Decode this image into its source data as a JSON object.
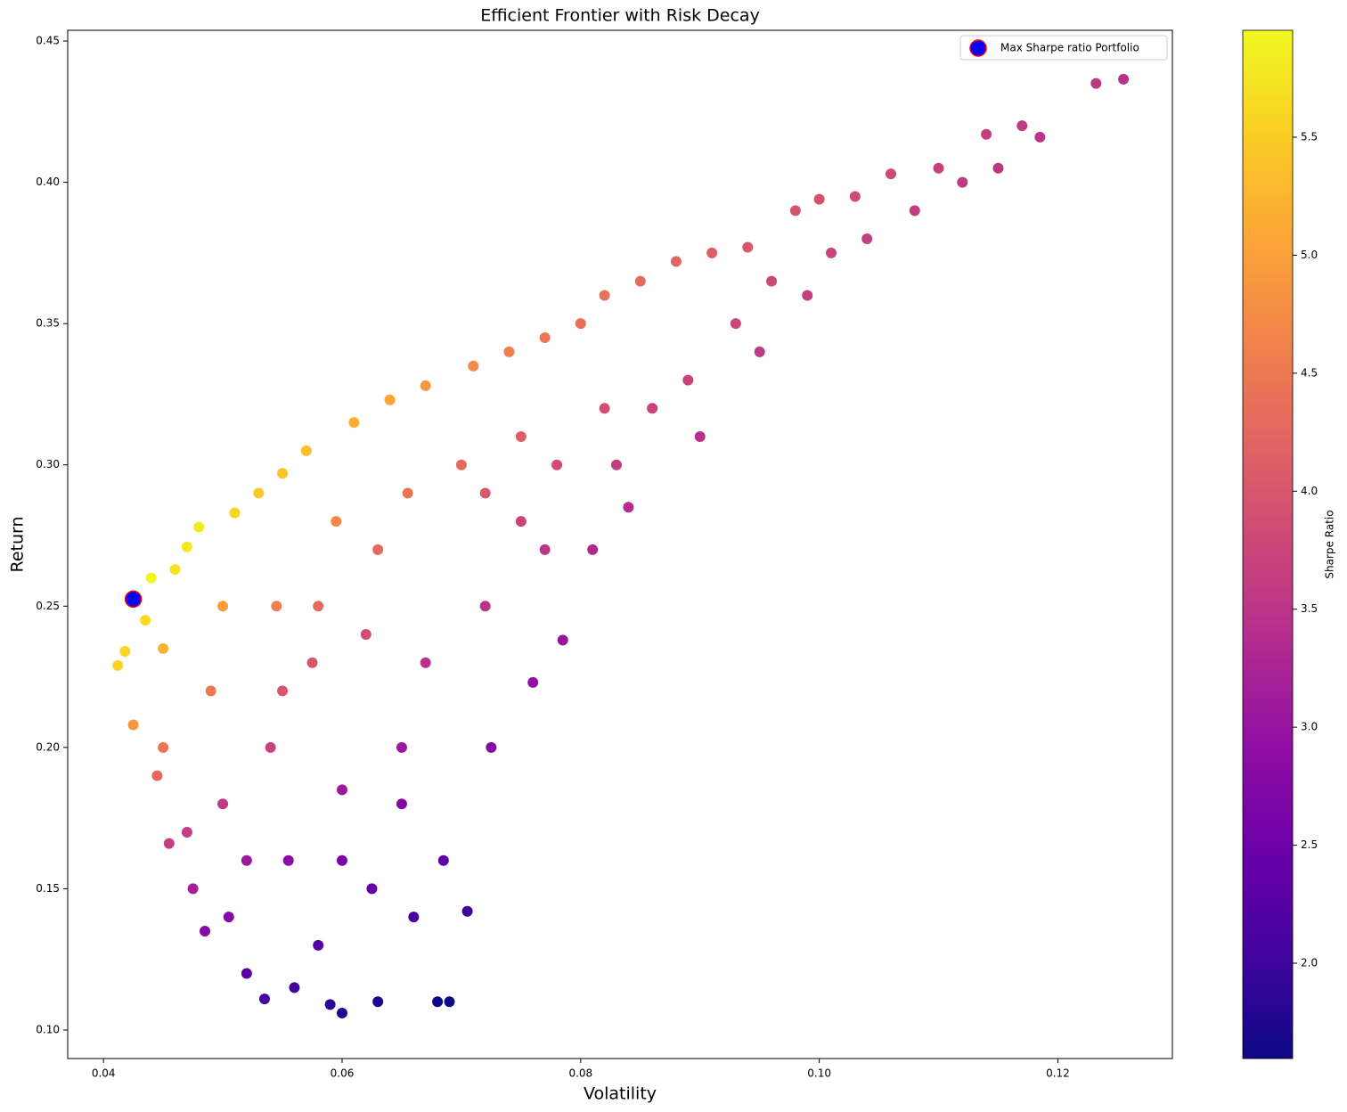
{
  "chart_data": {
    "type": "scatter",
    "title": "Efficient Frontier with Risk Decay",
    "x_label": "Volatility",
    "y_label": "Return",
    "xlim": [
      0.037,
      0.1296
    ],
    "ylim": [
      0.0899,
      0.4538
    ],
    "xticks": [
      0.04,
      0.06,
      0.08,
      {
        "value": 0.1,
        "label": "0.10"
      },
      0.12
    ],
    "yticks": [
      {
        "value": 0.1,
        "label": "0.10"
      },
      0.15,
      {
        "value": 0.2,
        "label": "0.20"
      },
      0.25,
      {
        "value": 0.3,
        "label": "0.30"
      },
      0.35,
      {
        "value": 0.4,
        "label": "0.40"
      },
      0.45
    ],
    "colorbar": {
      "label": "Sharpe Ratio",
      "colormap": "plasma",
      "clim": [
        1.596,
        5.953
      ],
      "ticks": [
        {
          "value": 2,
          "label": "2.0"
        },
        2.5,
        {
          "value": 3,
          "label": "3.0"
        },
        3.5,
        {
          "value": 4,
          "label": "4.0"
        },
        4.5,
        {
          "value": 5,
          "label": "5.0"
        },
        5.5
      ]
    },
    "legend_position": "upper right",
    "series": [
      {
        "x": [
          0.0412,
          0.0418,
          0.0425,
          0.0435,
          0.044,
          0.0445,
          0.045,
          0.0455,
          0.046,
          0.047,
          0.048,
          0.0475,
          0.0485,
          0.049,
          0.05,
          0.051,
          0.0505,
          0.052,
          0.053,
          0.0535,
          0.054,
          0.0545,
          0.055,
          0.0555,
          0.056,
          0.057,
          0.0575,
          0.058,
          0.059,
          0.06,
          0.0595,
          0.06,
          0.061,
          0.062,
          0.0625,
          0.063,
          0.064,
          0.065,
          0.0655,
          0.066,
          0.067,
          0.068,
          0.069,
          0.0685,
          0.07,
          0.0705,
          0.071,
          0.072,
          0.0725,
          0.074,
          0.075,
          0.076,
          0.077,
          0.078,
          0.0785,
          0.08,
          0.081,
          0.082,
          0.083,
          0.084,
          0.085,
          0.086,
          0.088,
          0.089,
          0.09,
          0.091,
          0.093,
          0.094,
          0.095,
          0.096,
          0.098,
          0.099,
          0.1,
          0.101,
          0.103,
          0.104,
          0.106,
          0.108,
          0.11,
          0.112,
          0.114,
          0.115,
          0.117,
          0.1185,
          0.1232,
          0.1255,
          0.05,
          0.052,
          0.055,
          0.058,
          0.063,
          0.067,
          0.072,
          0.077,
          0.082,
          0.045,
          0.047,
          0.06,
          0.065,
          0.075
        ],
        "values": [
          0.229,
          0.234,
          0.208,
          0.245,
          0.26,
          0.19,
          0.235,
          0.166,
          0.263,
          0.271,
          0.278,
          0.15,
          0.135,
          0.22,
          0.25,
          0.283,
          0.14,
          0.12,
          0.29,
          0.111,
          0.2,
          0.25,
          0.297,
          0.16,
          0.115,
          0.305,
          0.23,
          0.13,
          0.109,
          0.106,
          0.28,
          0.185,
          0.315,
          0.24,
          0.15,
          0.11,
          0.323,
          0.2,
          0.29,
          0.14,
          0.328,
          0.11,
          0.11,
          0.16,
          0.3,
          0.142,
          0.335,
          0.25,
          0.2,
          0.34,
          0.28,
          0.223,
          0.345,
          0.3,
          0.238,
          0.35,
          0.27,
          0.36,
          0.3,
          0.285,
          0.365,
          0.32,
          0.372,
          0.33,
          0.31,
          0.375,
          0.35,
          0.377,
          0.34,
          0.365,
          0.39,
          0.36,
          0.394,
          0.375,
          0.395,
          0.38,
          0.403,
          0.39,
          0.405,
          0.4,
          0.417,
          0.405,
          0.42,
          0.416,
          0.435,
          0.4365,
          0.18,
          0.16,
          0.22,
          0.25,
          0.27,
          0.23,
          0.29,
          0.27,
          0.32,
          0.2,
          0.17,
          0.16,
          0.18,
          0.31
        ],
        "color_values": [
          5.56,
          5.6,
          4.89,
          5.63,
          5.91,
          4.27,
          5.22,
          3.65,
          5.72,
          5.77,
          5.79,
          3.16,
          2.78,
          4.49,
          5.0,
          5.55,
          2.77,
          2.31,
          5.47,
          2.07,
          3.7,
          4.59,
          5.4,
          2.88,
          2.05,
          5.35,
          4.0,
          2.24,
          1.85,
          1.77,
          4.71,
          3.08,
          5.16,
          3.87,
          2.4,
          1.75,
          5.05,
          3.08,
          4.43,
          2.12,
          4.9,
          1.62,
          1.59,
          2.34,
          4.29,
          2.01,
          4.72,
          3.47,
          2.76,
          4.59,
          3.73,
          2.93,
          4.48,
          3.85,
          3.03,
          4.38,
          3.33,
          4.39,
          3.61,
          3.39,
          4.29,
          3.72,
          4.23,
          3.71,
          3.44,
          4.12,
          3.76,
          4.01,
          3.58,
          3.8,
          3.98,
          3.64,
          3.94,
          3.71,
          3.83,
          3.65,
          3.8,
          3.61,
          3.68,
          3.57,
          3.66,
          3.52,
          3.59,
          3.51,
          3.53,
          3.48,
          3.6,
          3.08,
          4.0,
          4.31,
          4.29,
          3.43,
          4.03,
          3.51,
          3.9,
          4.44,
          3.62,
          2.67,
          2.77,
          4.13
        ]
      },
      {
        "name": "Max Sharpe ratio Portfolio",
        "x": [
          0.0425
        ],
        "values": [
          0.2525
        ],
        "color": "#0000ff",
        "edgecolor": "#ff0000"
      }
    ]
  }
}
